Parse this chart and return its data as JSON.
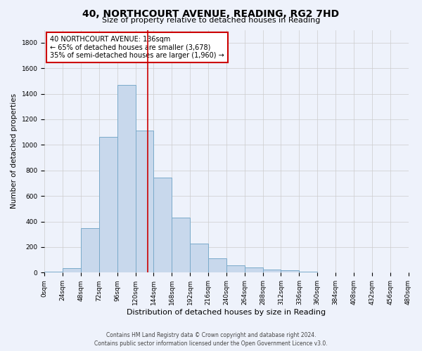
{
  "title": "40, NORTHCOURT AVENUE, READING, RG2 7HD",
  "subtitle": "Size of property relative to detached houses in Reading",
  "xlabel": "Distribution of detached houses by size in Reading",
  "ylabel": "Number of detached properties",
  "bar_color": "#c8d8ec",
  "bar_edge_color": "#7aaaca",
  "background_color": "#eef2fb",
  "grid_color": "#cccccc",
  "bins": [
    0,
    24,
    48,
    72,
    96,
    120,
    144,
    168,
    192,
    216,
    240,
    264,
    288,
    312,
    336,
    360,
    384,
    408,
    432,
    456,
    480
  ],
  "bar_heights": [
    10,
    35,
    350,
    1060,
    1470,
    1110,
    745,
    430,
    225,
    110,
    55,
    40,
    25,
    20,
    5,
    3,
    2,
    1,
    1,
    0
  ],
  "property_sqm": 136,
  "annotation_title": "40 NORTHCOURT AVENUE: 136sqm",
  "annotation_line1": "← 65% of detached houses are smaller (3,678)",
  "annotation_line2": "35% of semi-detached houses are larger (1,960) →",
  "vline_color": "#cc0000",
  "annotation_box_color": "#ffffff",
  "annotation_box_edge": "#cc0000",
  "footer1": "Contains HM Land Registry data © Crown copyright and database right 2024.",
  "footer2": "Contains public sector information licensed under the Open Government Licence v3.0.",
  "ylim": [
    0,
    1900
  ],
  "yticks": [
    0,
    200,
    400,
    600,
    800,
    1000,
    1200,
    1400,
    1600,
    1800
  ],
  "title_fontsize": 10,
  "subtitle_fontsize": 8,
  "xlabel_fontsize": 8,
  "ylabel_fontsize": 7.5,
  "tick_fontsize": 6.5,
  "annotation_fontsize": 7,
  "footer_fontsize": 5.5
}
